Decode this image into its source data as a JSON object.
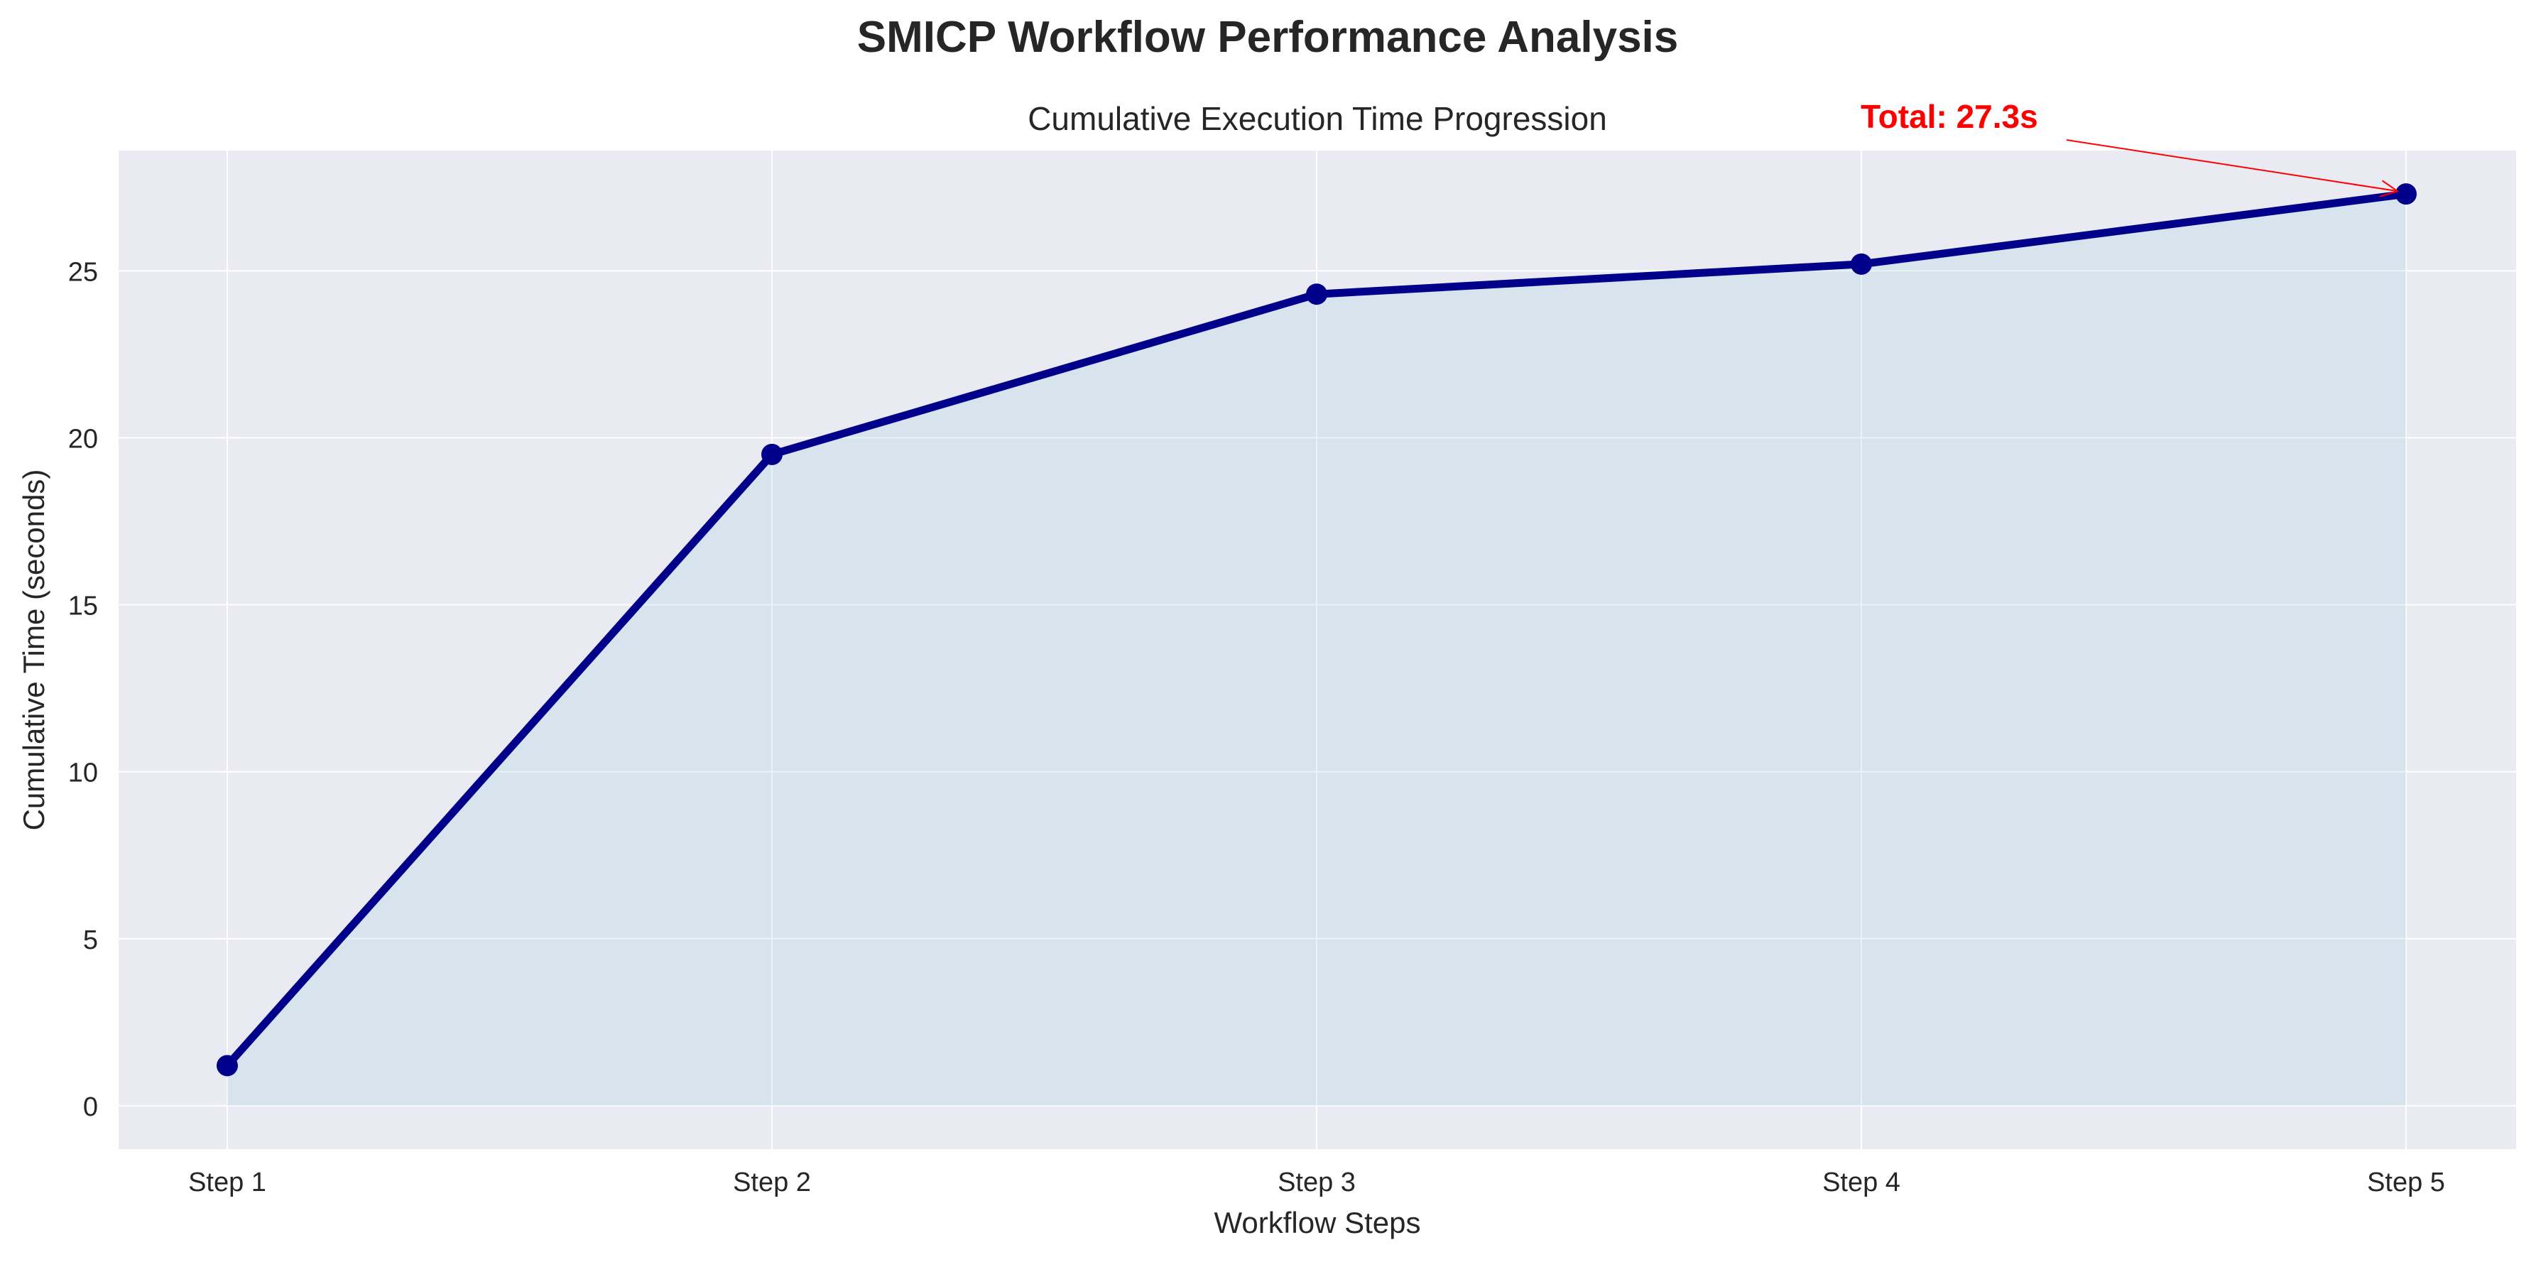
{
  "figure": {
    "suptitle": "SMICP Workflow Performance Analysis"
  },
  "colors": {
    "plot_background": "#eaeaf2",
    "grid": "#ffffff",
    "line": "#00008b",
    "fill": "#add8e6",
    "annotation": "#ff0000",
    "text": "#262626"
  },
  "chart_data": {
    "type": "area",
    "title": "Cumulative Execution Time Progression",
    "xlabel": "Workflow Steps",
    "ylabel": "Cumulative Time (seconds)",
    "categories": [
      "Step 1",
      "Step 2",
      "Step 3",
      "Step 4",
      "Step 5"
    ],
    "series": [
      {
        "values": [
          1.2,
          19.5,
          24.3,
          25.2,
          27.3
        ]
      }
    ],
    "ylim": [
      -1.3,
      28.6
    ],
    "yticks": [
      0,
      5,
      10,
      15,
      20,
      25
    ],
    "grid": true,
    "annotation": {
      "text": "Total: 27.3s",
      "category": "Step 5",
      "value": 27.3
    }
  }
}
